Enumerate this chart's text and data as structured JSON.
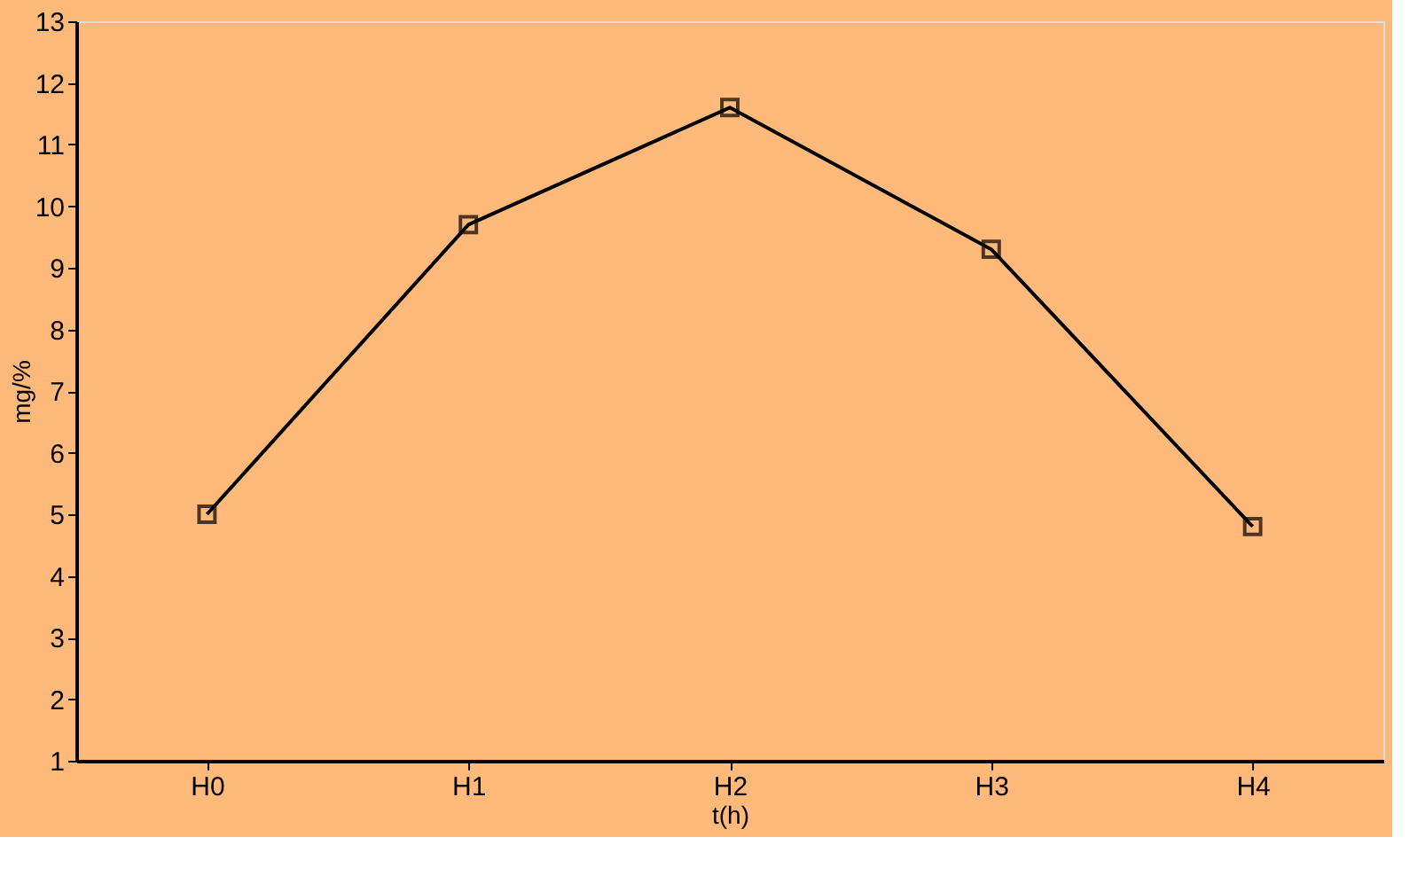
{
  "chart_data": {
    "type": "line",
    "xlabel": "t(h)",
    "ylabel": "mg/%",
    "categories": [
      "H0",
      "H1",
      "H2",
      "H3",
      "H4"
    ],
    "series": [
      {
        "color": "#000000",
        "values": [
          5.0,
          9.7,
          11.6,
          9.3,
          4.8
        ]
      }
    ],
    "ylim": [
      1,
      13
    ],
    "yticks": [
      1,
      2,
      3,
      4,
      5,
      6,
      7,
      8,
      9,
      10,
      11,
      12,
      13
    ],
    "grid": false,
    "legend": false,
    "marker": "square",
    "line_style": "solid"
  }
}
